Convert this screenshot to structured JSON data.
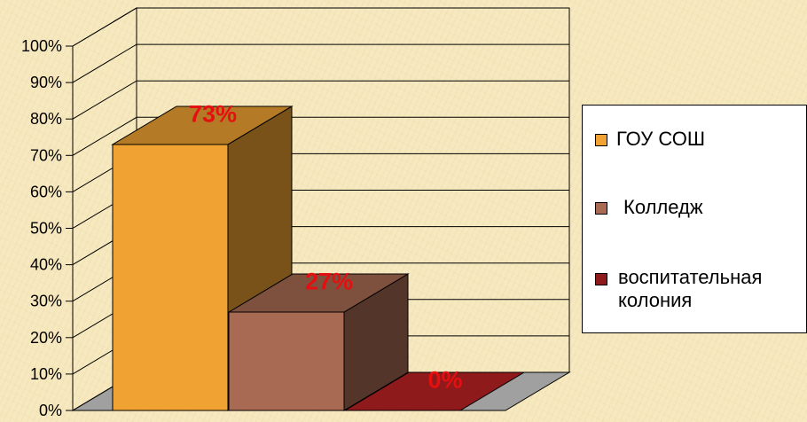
{
  "chart_data": {
    "type": "bar",
    "subtype": "3d-column",
    "categories": [
      "ГОУ СОШ",
      "Колледж",
      "воспитательная колония"
    ],
    "values": [
      73,
      27,
      0
    ],
    "data_labels": [
      "73%",
      "27%",
      "0%"
    ],
    "ylim": [
      0,
      100
    ],
    "yticks": [
      "0%",
      "10%",
      "20%",
      "30%",
      "40%",
      "50%",
      "60%",
      "70%",
      "80%",
      "90%",
      "100%"
    ],
    "grid": true,
    "legend_position": "right",
    "colors": [
      "#f0a332",
      "#a86a52",
      "#8e1a1c"
    ],
    "label_color": "#e41010"
  },
  "legend": {
    "items": [
      {
        "label": "ГОУ СОШ",
        "color": "#f0a332"
      },
      {
        "label": "Колледж",
        "color": "#a86a52"
      },
      {
        "label": "воспитательная колония",
        "color": "#8e1a1c"
      }
    ]
  }
}
